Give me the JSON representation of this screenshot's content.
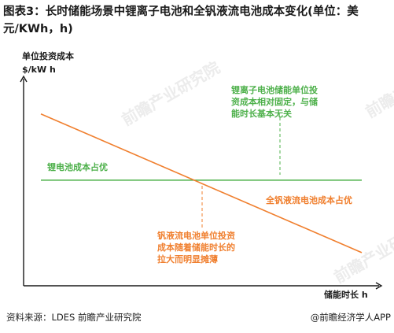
{
  "title": "图表3：长时储能场景中锂离子电池和全钒液流电池成本变化(单位：美元/KWh，h)",
  "source": "资料来源：LDES 前瞻产业研究院",
  "brand": "@前瞻经济学人APP",
  "watermark": "前瞻产业研究院",
  "colors": {
    "lithium": "#4db04a",
    "vanadium": "#f07f2e",
    "axis": "#1a1a1a"
  },
  "chart_data": {
    "type": "line",
    "ylabel_lines": [
      "单位投资成本",
      "$/kW h"
    ],
    "xlabel": "储能时长 h",
    "series": [
      {
        "name": "锂电池成本占优",
        "kind": "constant",
        "x": [
          0,
          1
        ],
        "y": [
          0.51,
          0.51
        ]
      },
      {
        "name": "全钒液流电池成本占优",
        "kind": "decreasing",
        "x": [
          0,
          1
        ],
        "y": [
          0.83,
          0.16
        ]
      }
    ],
    "annotations": [
      {
        "lines": [
          "锂离子电池储能单位投",
          "资成本相对固定，与储",
          "能时长基本无关"
        ]
      },
      {
        "lines": [
          "钒液流电池单位投资",
          "成本随着储能时长的",
          "拉大而明显摊薄"
        ]
      }
    ]
  }
}
